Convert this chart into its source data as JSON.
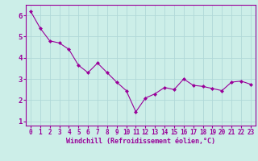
{
  "x": [
    0,
    1,
    2,
    3,
    4,
    5,
    6,
    7,
    8,
    9,
    10,
    11,
    12,
    13,
    14,
    15,
    16,
    17,
    18,
    19,
    20,
    21,
    22,
    23
  ],
  "y": [
    6.2,
    5.4,
    4.8,
    4.7,
    4.4,
    3.65,
    3.3,
    3.75,
    3.3,
    2.85,
    2.45,
    1.45,
    2.1,
    2.3,
    2.6,
    2.5,
    3.0,
    2.7,
    2.65,
    2.55,
    2.45,
    2.85,
    2.9,
    2.75
  ],
  "line_color": "#990099",
  "marker": "D",
  "marker_size": 2.0,
  "linewidth": 0.8,
  "xlabel": "Windchill (Refroidissement éolien,°C)",
  "xlabel_fontsize": 6.0,
  "xlabel_color": "#990099",
  "ylabel_ticks": [
    1,
    2,
    3,
    4,
    5,
    6
  ],
  "xtick_labels": [
    "0",
    "1",
    "2",
    "3",
    "4",
    "5",
    "6",
    "7",
    "8",
    "9",
    "10",
    "11",
    "12",
    "13",
    "14",
    "15",
    "16",
    "17",
    "18",
    "19",
    "20",
    "21",
    "22",
    "23"
  ],
  "xlim": [
    -0.5,
    23.5
  ],
  "ylim": [
    0.8,
    6.5
  ],
  "background_color": "#cceee8",
  "grid_color": "#b0d8d8",
  "tick_color": "#990099",
  "tick_fontsize": 5.5,
  "ytick_fontsize": 6.5
}
